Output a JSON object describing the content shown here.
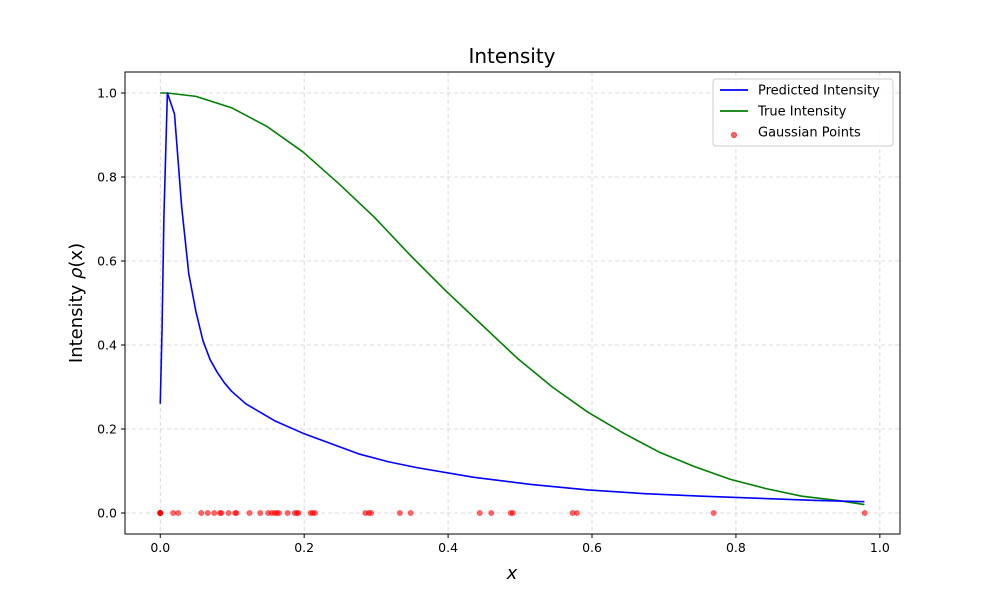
{
  "chart_data": {
    "type": "line",
    "title": "Intensity",
    "xlabel": "x",
    "ylabel_prefix": "Intensity ",
    "ylabel_symbol": "ρ",
    "ylabel_suffix": "(x)",
    "xlim": [
      -0.049,
      1.028
    ],
    "ylim": [
      -0.05,
      1.05
    ],
    "grid": true,
    "legend_position": "top-right",
    "x_ticks": [
      {
        "value": 0.0,
        "label": "0.0"
      },
      {
        "value": 0.2,
        "label": "0.2"
      },
      {
        "value": 0.4,
        "label": "0.4"
      },
      {
        "value": 0.6,
        "label": "0.6"
      },
      {
        "value": 0.8,
        "label": "0.8"
      },
      {
        "value": 1.0,
        "label": "1.0"
      }
    ],
    "y_ticks": [
      {
        "value": 0.0,
        "label": "0.0"
      },
      {
        "value": 0.2,
        "label": "0.2"
      },
      {
        "value": 0.4,
        "label": "0.4"
      },
      {
        "value": 0.6,
        "label": "0.6"
      },
      {
        "value": 0.8,
        "label": "0.8"
      },
      {
        "value": 1.0,
        "label": "1.0"
      }
    ],
    "series": [
      {
        "name": "Predicted Intensity",
        "kind": "line",
        "color": "#0000ff",
        "x": [
          0.0,
          0.0025,
          0.005,
          0.0099,
          0.0198,
          0.0297,
          0.0396,
          0.0495,
          0.0594,
          0.0693,
          0.0792,
          0.0891,
          0.099,
          0.1189,
          0.1387,
          0.1585,
          0.1981,
          0.2377,
          0.2773,
          0.3169,
          0.3566,
          0.4358,
          0.5151,
          0.5943,
          0.6736,
          0.7528,
          0.8321,
          0.9113,
          0.9786
        ],
        "y": [
          0.26,
          0.44,
          0.7,
          1.0,
          0.95,
          0.73,
          0.57,
          0.48,
          0.41,
          0.365,
          0.335,
          0.31,
          0.29,
          0.26,
          0.24,
          0.22,
          0.19,
          0.165,
          0.14,
          0.122,
          0.108,
          0.085,
          0.068,
          0.055,
          0.046,
          0.04,
          0.035,
          0.03,
          0.027
        ]
      },
      {
        "name": "True Intensity",
        "kind": "line",
        "color": "#008000",
        "x": [
          0.0,
          0.0099,
          0.0495,
          0.099,
          0.1486,
          0.1981,
          0.2476,
          0.2971,
          0.3467,
          0.3962,
          0.4457,
          0.4952,
          0.5448,
          0.5943,
          0.6438,
          0.6933,
          0.7429,
          0.7924,
          0.8419,
          0.8914,
          0.941,
          0.9786
        ],
        "y": [
          1.0,
          1.0,
          0.992,
          0.965,
          0.92,
          0.86,
          0.785,
          0.705,
          0.615,
          0.53,
          0.45,
          0.37,
          0.3,
          0.24,
          0.19,
          0.145,
          0.11,
          0.08,
          0.058,
          0.04,
          0.03,
          0.02
        ]
      },
      {
        "name": "Gaussian Points",
        "kind": "scatter",
        "color": "#ff0000",
        "x": [
          0.0,
          0.0,
          0.0,
          0.0,
          0.0,
          0.0,
          0.0,
          0.0,
          0.0,
          0.0,
          0.018,
          0.025,
          0.057,
          0.066,
          0.075,
          0.083,
          0.085,
          0.095,
          0.104,
          0.106,
          0.124,
          0.139,
          0.15,
          0.155,
          0.159,
          0.162,
          0.165,
          0.177,
          0.187,
          0.19,
          0.192,
          0.209,
          0.212,
          0.215,
          0.285,
          0.29,
          0.293,
          0.333,
          0.348,
          0.444,
          0.46,
          0.487,
          0.49,
          0.573,
          0.579,
          0.769,
          0.979
        ],
        "y": [
          0,
          0,
          0,
          0,
          0,
          0,
          0,
          0,
          0,
          0,
          0,
          0,
          0,
          0,
          0,
          0,
          0,
          0,
          0,
          0,
          0,
          0,
          0,
          0,
          0,
          0,
          0,
          0,
          0,
          0,
          0,
          0,
          0,
          0,
          0,
          0,
          0,
          0,
          0,
          0,
          0,
          0,
          0,
          0,
          0,
          0,
          0
        ]
      }
    ],
    "legend": [
      {
        "label": "Predicted Intensity",
        "kind": "line",
        "color": "#0000ff"
      },
      {
        "label": "True Intensity",
        "kind": "line",
        "color": "#008000"
      },
      {
        "label": "Gaussian Points",
        "kind": "scatter",
        "color": "#ff0000"
      }
    ]
  }
}
